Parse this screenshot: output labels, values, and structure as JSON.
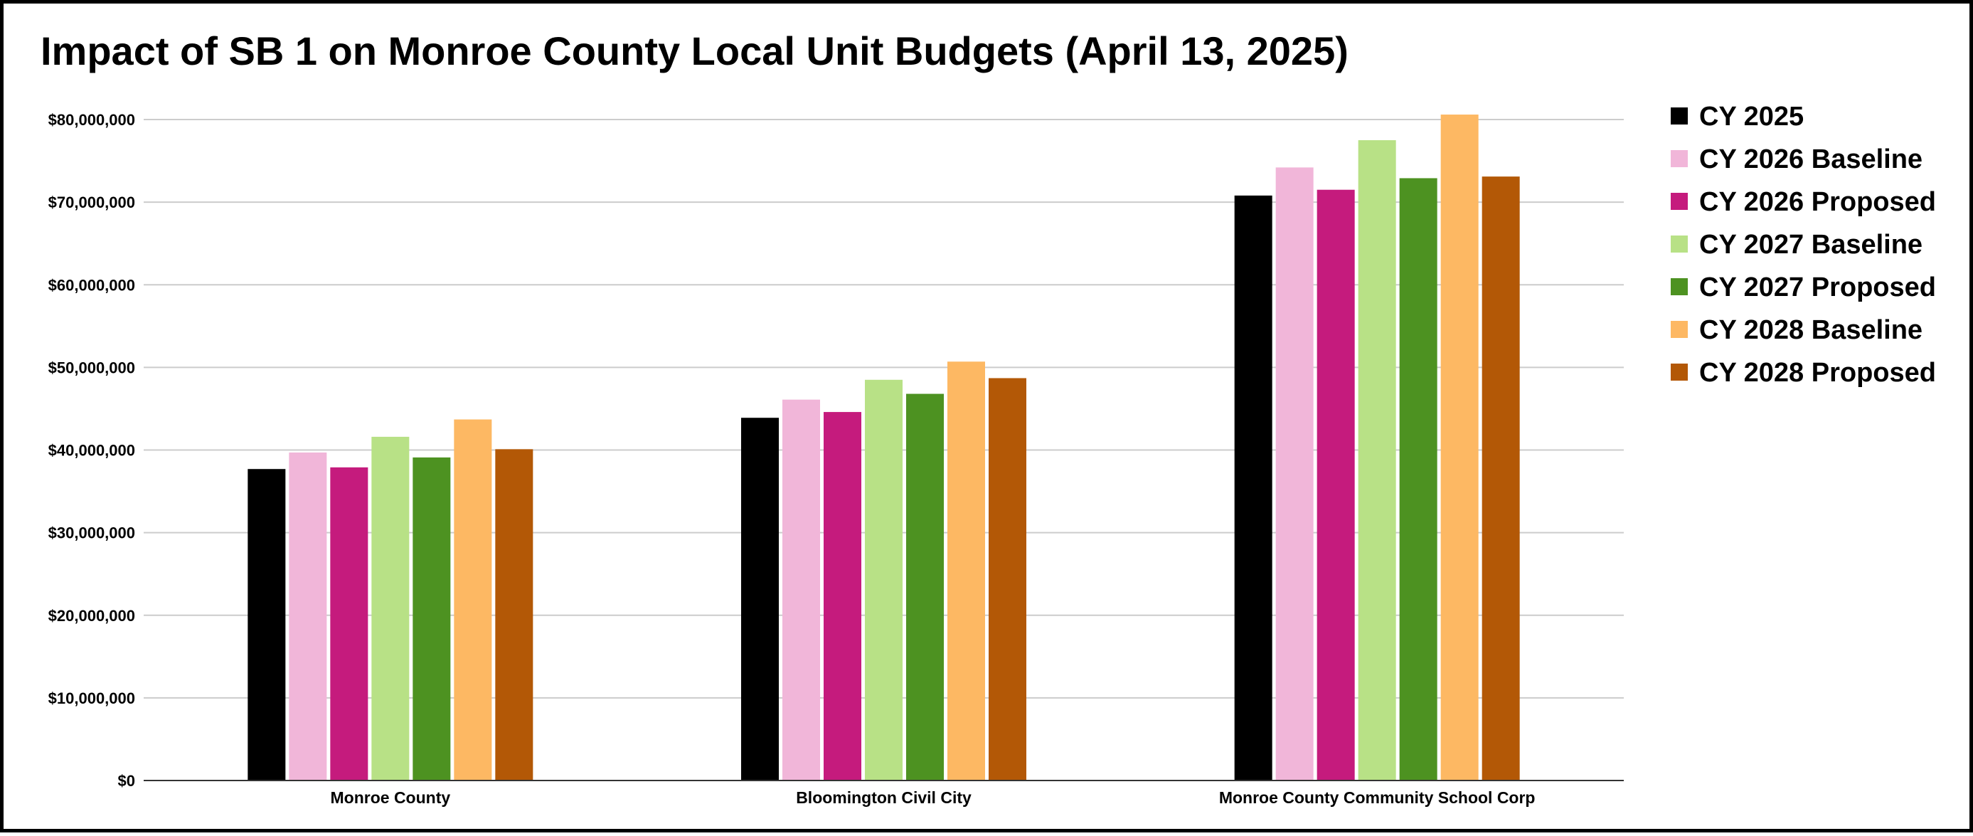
{
  "chart_data": {
    "type": "bar",
    "title": "Impact of SB 1 on Monroe County Local Unit Budgets (April 13, 2025)",
    "xlabel": "",
    "ylabel": "",
    "categories": [
      "Monroe County",
      "Bloomington Civil City",
      "Monroe County Community School Corp"
    ],
    "ylim": [
      0,
      80000000
    ],
    "yticks": [
      {
        "value": 0,
        "label": "$0"
      },
      {
        "value": 10000000,
        "label": "$10,000,000"
      },
      {
        "value": 20000000,
        "label": "$20,000,000"
      },
      {
        "value": 30000000,
        "label": "$30,000,000"
      },
      {
        "value": 40000000,
        "label": "$40,000,000"
      },
      {
        "value": 50000000,
        "label": "$50,000,000"
      },
      {
        "value": 60000000,
        "label": "$60,000,000"
      },
      {
        "value": 70000000,
        "label": "$70,000,000"
      },
      {
        "value": 80000000,
        "label": "$80,000,000"
      }
    ],
    "grid": true,
    "legend_position": "right",
    "series": [
      {
        "name": "CY 2025",
        "color": "#000000",
        "values": [
          37700000,
          43900000,
          70800000
        ]
      },
      {
        "name": "CY 2026 Baseline",
        "color": "#f1b6d9",
        "values": [
          39700000,
          46100000,
          74200000
        ]
      },
      {
        "name": "CY 2026 Proposed",
        "color": "#c51b7d",
        "values": [
          37900000,
          44600000,
          71500000
        ]
      },
      {
        "name": "CY 2027 Baseline",
        "color": "#b8e186",
        "values": [
          41600000,
          48500000,
          77500000
        ]
      },
      {
        "name": "CY 2027 Proposed",
        "color": "#4d9221",
        "values": [
          39100000,
          46800000,
          72900000
        ]
      },
      {
        "name": "CY 2028 Baseline",
        "color": "#fdb863",
        "values": [
          43700000,
          50700000,
          80600000
        ]
      },
      {
        "name": "CY 2028 Proposed",
        "color": "#b35806",
        "values": [
          40100000,
          48700000,
          73100000
        ]
      }
    ]
  }
}
